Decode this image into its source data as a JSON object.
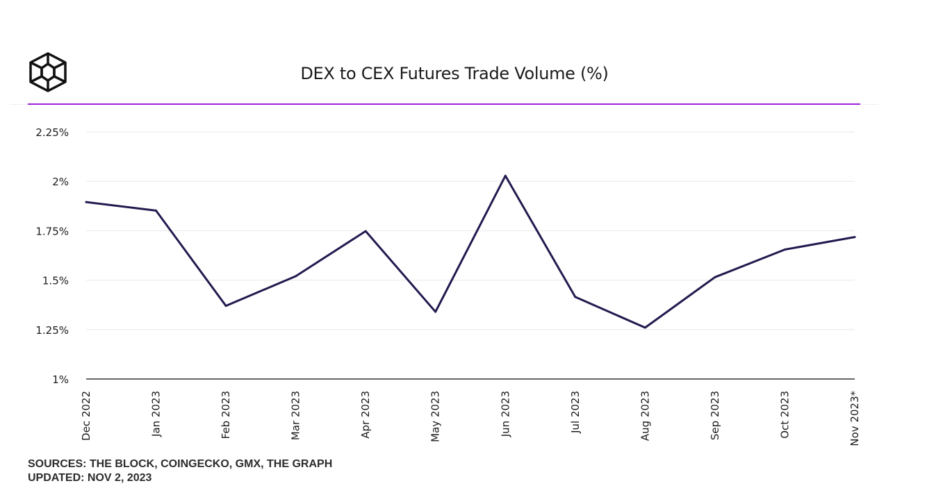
{
  "header": {
    "title": "DEX to CEX Futures Trade Volume (%)",
    "logo_icon": "cube-logo-icon"
  },
  "footer": {
    "sources": "SOURCES: THE BLOCK, COINGECKO, GMX, THE GRAPH",
    "updated": "UPDATED: NOV 2, 2023"
  },
  "colors": {
    "line": "#231a4f",
    "accent_rule": "#a020d8",
    "grid": "#e8e8e8",
    "axis": "#333333",
    "text": "#1a1a1a"
  },
  "chart_data": {
    "type": "line",
    "title": "DEX to CEX Futures Trade Volume (%)",
    "xlabel": "",
    "ylabel": "",
    "categories": [
      "Dec 2022",
      "Jan 2023",
      "Feb 2023",
      "Mar 2023",
      "Apr 2023",
      "May 2023",
      "Jun 2023",
      "Jul 2023",
      "Aug 2023",
      "Sep 2023",
      "Oct 2023",
      "Nov 2023*"
    ],
    "series": [
      {
        "values": [
          1.895,
          1.852,
          1.37,
          1.52,
          1.748,
          1.34,
          2.028,
          1.415,
          1.26,
          1.515,
          1.655,
          1.718
        ]
      }
    ],
    "ylim": [
      1,
      2.25
    ],
    "yticks": [
      1,
      1.25,
      1.5,
      1.75,
      2,
      2.25
    ],
    "ytick_labels": [
      "1%",
      "1.25%",
      "1.5%",
      "1.75%",
      "2%",
      "2.25%"
    ],
    "grid": true,
    "legend": "none"
  }
}
